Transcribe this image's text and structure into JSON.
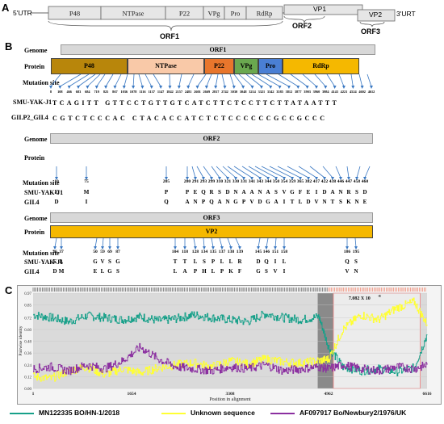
{
  "panelA": {
    "label": "A",
    "utr5": "5'UTR",
    "utr3": "3'URT",
    "orf1_boxes": [
      "P48",
      "NTPase",
      "P22",
      "VPg",
      "Pro",
      "RdRp"
    ],
    "vp1": "VP1",
    "vp2": "VP2",
    "orf1": "ORF1",
    "orf2": "ORF2",
    "orf3": "ORF3"
  },
  "panelB": {
    "label": "B",
    "genome_label": "Genome",
    "protein_label": "Protein",
    "mutation_label": "Mutation site",
    "orf1": {
      "genome": "ORF1",
      "proteins": [
        "P48",
        "NTPase",
        "P22",
        "VPg",
        "Pro",
        "RdRp"
      ],
      "protein_colors": [
        "#b8860b",
        "#f9c9a8",
        "#e8762c",
        "#6aa84f",
        "#4a7fd4",
        "#f5b800"
      ],
      "sites": [
        "8",
        "108",
        "466",
        "683",
        "684",
        "719",
        "825",
        "867",
        "1036",
        "1078",
        "1116",
        "1137",
        "1147",
        "1842",
        "2157",
        "2481",
        "2601",
        "2669",
        "2817",
        "2742",
        "3030",
        "3048",
        "3214",
        "3321",
        "3342",
        "3585",
        "3812",
        "3877",
        "3903",
        "3960",
        "3984",
        "4143",
        "4221",
        "4524",
        "4602",
        "4612"
      ],
      "row1_label": "SMU-YAK-J1",
      "row1": "TCAGITT GTTCCTGTTGTCATCTTCTCCTTCTTATAATTT",
      "row2_label": "GII.P2_GII.4",
      "row2": "CGTCTCCCAC CTACACCATCTCTCCCCCCGCCGCCC"
    },
    "orf2": {
      "genome": "ORF2",
      "proteins": [
        "S",
        "P"
      ],
      "protein_colors": [
        "#f5b800",
        "#1fa046"
      ],
      "sites": [
        "10",
        "75",
        "205",
        "280",
        "291",
        "293",
        "299",
        "310",
        "321",
        "330",
        "331",
        "341",
        "343",
        "344",
        "350",
        "354",
        "359",
        "365",
        "382",
        "417",
        "422",
        "438",
        "446",
        "447",
        "458",
        "460"
      ],
      "row1_label": "SMU-YAK-J1",
      "row1": [
        "E",
        "M",
        "P",
        "P",
        "E",
        "Q",
        "R",
        "S",
        "D",
        "N",
        "A",
        "A",
        "N",
        "A",
        "S",
        "V",
        "G",
        "F",
        "E",
        "I",
        "D",
        "A",
        "N",
        "R",
        "S",
        "D"
      ],
      "row2_label": "GII.4",
      "row2": [
        "D",
        "I",
        "Q",
        "A",
        "N",
        "P",
        "Q",
        "A",
        "N",
        "G",
        "P",
        "V",
        "D",
        "G",
        "A",
        "I",
        "T",
        "L",
        "D",
        "V",
        "N",
        "T",
        "S",
        "K",
        "N",
        "E"
      ]
    },
    "orf3": {
      "genome": "ORF3",
      "protein": "VP2",
      "protein_color": "#f5b800",
      "sites": [
        "36",
        "37",
        "50",
        "59",
        "69",
        "87",
        "104",
        "118",
        "128",
        "134",
        "135",
        "137",
        "138",
        "139",
        "145",
        "146",
        "151",
        "158",
        "186",
        "195"
      ],
      "row1_label": "SMU-YAK-J1",
      "row1": [
        "E",
        "L",
        "G",
        "V",
        "S",
        "G",
        "T",
        "T",
        "L",
        "S",
        "P",
        "L",
        "L",
        "R",
        "D",
        "Q",
        "I",
        "L",
        "Q",
        "S"
      ],
      "row2_label": "GII.4",
      "row2": [
        "D",
        "M",
        "E",
        "L",
        "G",
        "S",
        "L",
        "A",
        "P",
        "H",
        "L",
        "P",
        "K",
        "F",
        "G",
        "S",
        "V",
        "I",
        "V",
        "N"
      ]
    }
  },
  "panelC": {
    "label": "C",
    "ylabel": "Pairwise identity",
    "xlabel": "Position in alignment",
    "y_top_label": "0.97",
    "yticks": [
      "0.00",
      "0.12",
      "0.24",
      "0.36",
      "0.48",
      "0.60",
      "0.72",
      "0.85",
      "0.97"
    ],
    "xticks": [
      "1",
      "1654",
      "3308",
      "4962",
      "6616"
    ],
    "pvalue": "7.082 X 10",
    "pvalue_exp": "-8"
  },
  "legend": [
    {
      "label": "MN122335 BO/HN-1/2018",
      "color": "#17a089"
    },
    {
      "label": "Unknown sequence",
      "color": "#ffff33"
    },
    {
      "label": "AF097917 Bo/Newbury2/1976/UK",
      "color": "#8b2fa0"
    }
  ],
  "chart_data": {
    "type": "line",
    "xlabel": "Position in alignment",
    "ylabel": "Pairwise identity",
    "xlim": [
      1,
      6616
    ],
    "ylim": [
      0,
      0.97
    ],
    "x": [
      1,
      300,
      600,
      900,
      1200,
      1500,
      1800,
      2100,
      2400,
      2700,
      3000,
      3300,
      3600,
      3900,
      4200,
      4500,
      4800,
      4962,
      5200,
      5500,
      5800,
      6100,
      6400,
      6616
    ],
    "series": [
      {
        "name": "MN122335 BO/HN-1/2018",
        "values": [
          0.75,
          0.72,
          0.68,
          0.74,
          0.72,
          0.7,
          0.73,
          0.69,
          0.71,
          0.75,
          0.72,
          0.7,
          0.68,
          0.76,
          0.72,
          0.7,
          0.73,
          0.42,
          0.22,
          0.18,
          0.2,
          0.17,
          0.21,
          0.55
        ]
      },
      {
        "name": "Unknown sequence",
        "values": [
          0.12,
          0.1,
          0.18,
          0.22,
          0.14,
          0.2,
          0.16,
          0.21,
          0.24,
          0.26,
          0.22,
          0.28,
          0.25,
          0.3,
          0.27,
          0.26,
          0.28,
          0.3,
          0.6,
          0.75,
          0.7,
          0.82,
          0.88,
          0.65
        ]
      },
      {
        "name": "AF097917 Bo/Newbury2/1976/UK",
        "values": [
          0.2,
          0.22,
          0.18,
          0.24,
          0.2,
          0.28,
          0.42,
          0.3,
          0.22,
          0.2,
          0.18,
          0.22,
          0.2,
          0.24,
          0.18,
          0.2,
          0.22,
          0.2,
          0.24,
          0.2,
          0.18,
          0.22,
          0.2,
          0.24
        ]
      }
    ]
  }
}
